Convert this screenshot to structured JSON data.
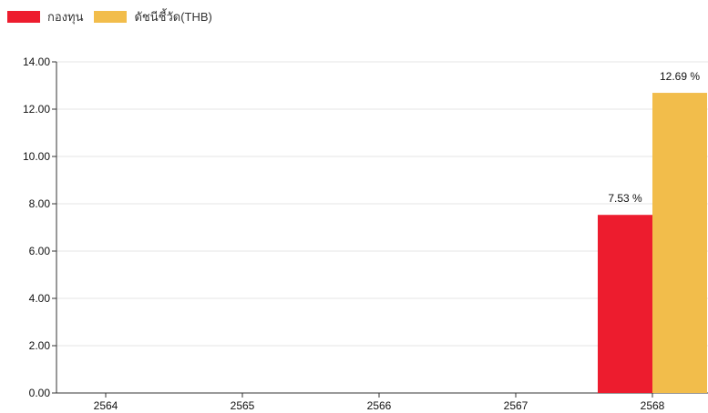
{
  "chart_data": {
    "type": "bar",
    "categories": [
      "2564",
      "2565",
      "2566",
      "2567",
      "2568"
    ],
    "series": [
      {
        "name": "กองทุน",
        "color": "#ed1c2e",
        "values": [
          null,
          null,
          null,
          null,
          7.53
        ],
        "labels": [
          "",
          "",
          "",
          "",
          "7.53 %"
        ]
      },
      {
        "name": "ดัชนีชี้วัด(THB)",
        "color": "#f2bd4b",
        "values": [
          null,
          null,
          null,
          null,
          12.69
        ],
        "labels": [
          "",
          "",
          "",
          "",
          "12.69 %"
        ]
      }
    ],
    "y_ticks": [
      "0.00",
      "2.00",
      "4.00",
      "6.00",
      "8.00",
      "10.00",
      "12.00",
      "14.00"
    ],
    "ylim": [
      0,
      14
    ],
    "grid": true,
    "legend_position": "top-left"
  }
}
